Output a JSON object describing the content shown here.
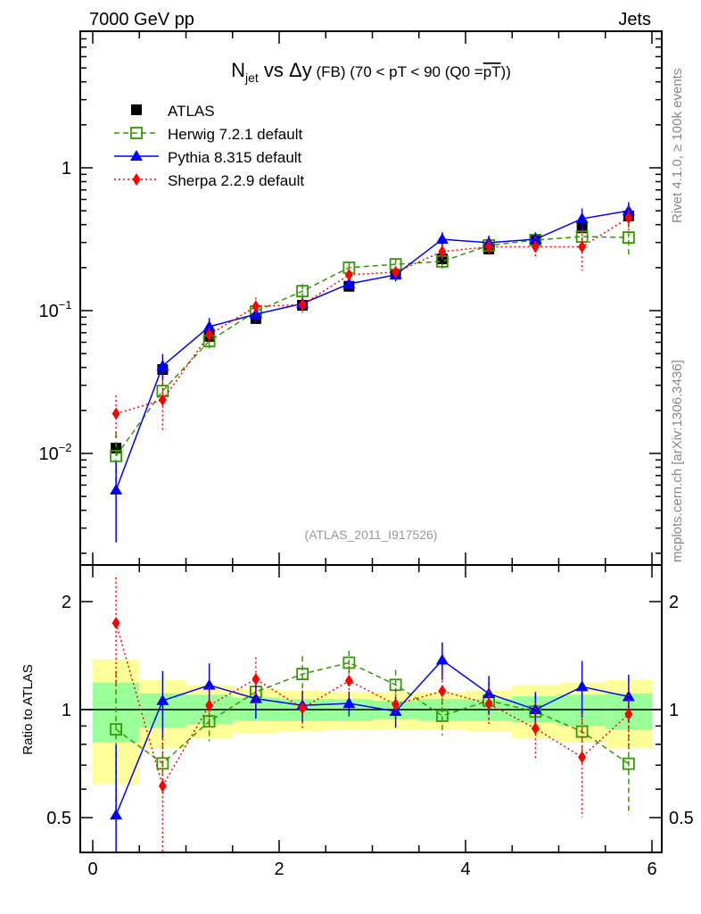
{
  "header": {
    "left": "7000 GeV pp",
    "right": "Jets"
  },
  "side_text": {
    "rivet": "Rivet 4.1.0, ≥ 100k events",
    "mcplots": "mcplots.cern.ch [arXiv:1306.3436]"
  },
  "watermark": "(ATLAS_2011_I917526)",
  "chart_data": {
    "type": "scatter",
    "title": {
      "main": "N",
      "sub": "jet",
      "rest": " vs Δy",
      "small": " (FB) (70 < pT <  90 (Q0 =",
      "over": "pT",
      "end": "))"
    },
    "xlabel": "",
    "ylabel": "",
    "ratio_ylabel": "Ratio to ATLAS",
    "xlim": [
      0,
      6
    ],
    "ylim": [
      0.00165,
      9
    ],
    "yscale": "log",
    "ratio_ylim": [
      0.4,
      2.53
    ],
    "x_ticks": [
      "0",
      "2",
      "4",
      "6"
    ],
    "y_ticks": [
      {
        "v": 1,
        "label": "1"
      },
      {
        "v": 0.1,
        "label": "10",
        "exp": "−1"
      },
      {
        "v": 0.01,
        "label": "10",
        "exp": "−2"
      }
    ],
    "ratio_ticks": [
      {
        "v": 2,
        "label": "2"
      },
      {
        "v": 1,
        "label": "1"
      },
      {
        "v": 0.5,
        "label": "0.5"
      }
    ],
    "legend_position": "top-left",
    "x": [
      0.25,
      0.75,
      1.25,
      1.75,
      2.25,
      2.75,
      3.25,
      3.75,
      4.25,
      4.75,
      5.25,
      5.75
    ],
    "bin_edges": [
      0,
      0.5,
      1,
      1.5,
      2,
      2.5,
      3,
      3.5,
      4,
      4.5,
      5,
      5.5,
      6
    ],
    "reference": {
      "name": "ATLAS",
      "color": "#000000",
      "values": [
        0.0109,
        0.0387,
        0.066,
        0.088,
        0.109,
        0.148,
        0.18,
        0.23,
        0.27,
        0.316,
        0.38,
        0.46
      ],
      "band_total_hi": [
        1.38,
        1.21,
        1.17,
        1.14,
        1.13,
        1.12,
        1.12,
        1.12,
        1.13,
        1.17,
        1.19,
        1.21
      ],
      "band_total_lo": [
        0.62,
        0.78,
        0.83,
        0.86,
        0.87,
        0.88,
        0.88,
        0.88,
        0.87,
        0.83,
        0.81,
        0.78
      ],
      "band_stat_hi": [
        1.19,
        1.11,
        1.1,
        1.08,
        1.07,
        1.07,
        1.06,
        1.07,
        1.07,
        1.09,
        1.1,
        1.11
      ],
      "band_stat_lo": [
        0.81,
        0.89,
        0.91,
        0.93,
        0.93,
        0.93,
        0.94,
        0.93,
        0.93,
        0.92,
        0.9,
        0.88
      ],
      "band_colors": {
        "total": "#ffff99",
        "stat": "#99ff99"
      }
    },
    "series": [
      {
        "name": "Herwig 7.2.1 default",
        "color": "#339900",
        "marker": "open-square",
        "dash": "6,4",
        "values": [
          0.0096,
          0.0274,
          0.0612,
          0.0986,
          0.137,
          0.2,
          0.211,
          0.221,
          0.286,
          0.312,
          0.33,
          0.325
        ],
        "rel_err": [
          0.45,
          0.2,
          0.12,
          0.1,
          0.12,
          0.08,
          0.1,
          0.12,
          0.12,
          0.12,
          0.15,
          0.28
        ]
      },
      {
        "name": "Pythia 8.315 default",
        "color": "#0000ff",
        "marker": "triangle",
        "dash": "",
        "values": [
          0.00554,
          0.041,
          0.0772,
          0.0944,
          0.112,
          0.154,
          0.178,
          0.316,
          0.299,
          0.316,
          0.44,
          0.5
        ],
        "rel_err": [
          0.57,
          0.21,
          0.15,
          0.12,
          0.1,
          0.08,
          0.1,
          0.12,
          0.12,
          0.12,
          0.18,
          0.15
        ]
      },
      {
        "name": "Sherpa 2.2.9 default",
        "color": "#ff0000",
        "marker": "diamond",
        "dash": "2,3",
        "values": [
          0.019,
          0.0237,
          0.0678,
          0.107,
          0.11,
          0.178,
          0.186,
          0.259,
          0.28,
          0.28,
          0.28,
          0.447
        ],
        "rel_err": [
          0.34,
          0.4,
          0.12,
          0.15,
          0.12,
          0.1,
          0.1,
          0.1,
          0.12,
          0.18,
          0.32,
          0.2
        ]
      }
    ]
  }
}
